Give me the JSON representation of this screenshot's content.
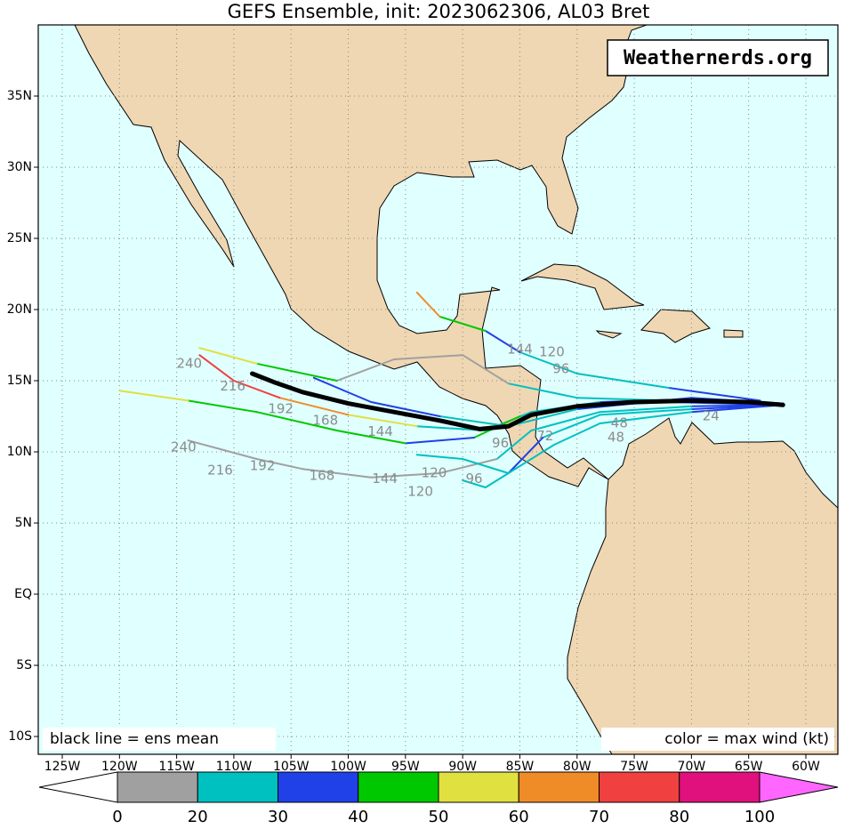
{
  "chart_data": {
    "type": "track-map",
    "title": "GEFS Ensemble, init: 2023062306, AL03 Bret",
    "watermark": "Weathernerds.org",
    "note_left": "black line = ens mean",
    "note_right": "color = max wind (kt)",
    "xlim": [
      -127.1,
      -57.2
    ],
    "ylim": [
      -11.25,
      40
    ],
    "xticks": [
      {
        "value": -125,
        "label": "125W"
      },
      {
        "value": -120,
        "label": "120W"
      },
      {
        "value": -115,
        "label": "115W"
      },
      {
        "value": -110,
        "label": "110W"
      },
      {
        "value": -105,
        "label": "105W"
      },
      {
        "value": -100,
        "label": "100W"
      },
      {
        "value": -95,
        "label": "95W"
      },
      {
        "value": -90,
        "label": "90W"
      },
      {
        "value": -85,
        "label": "85W"
      },
      {
        "value": -80,
        "label": "80W"
      },
      {
        "value": -75,
        "label": "75W"
      },
      {
        "value": -70,
        "label": "70W"
      },
      {
        "value": -65,
        "label": "65W"
      },
      {
        "value": -60,
        "label": "60W"
      }
    ],
    "yticks": [
      {
        "value": 35,
        "label": "35N"
      },
      {
        "value": 30,
        "label": "30N"
      },
      {
        "value": 25,
        "label": "25N"
      },
      {
        "value": 20,
        "label": "20N"
      },
      {
        "value": 15,
        "label": "15N"
      },
      {
        "value": 10,
        "label": "10N"
      },
      {
        "value": 5,
        "label": "5N"
      },
      {
        "value": 0,
        "label": "EQ"
      },
      {
        "value": -5,
        "label": "5S"
      },
      {
        "value": -10,
        "label": "10S"
      }
    ],
    "grid": true,
    "colorbar": {
      "ticks": [
        0,
        20,
        30,
        40,
        50,
        60,
        70,
        80,
        100
      ],
      "colors": [
        "#a0a0a0",
        "#00c0c0",
        "#2040e8",
        "#00c800",
        "#e0e040",
        "#f08c28",
        "#f04040",
        "#e0107c"
      ],
      "low_color": "#ffffff",
      "high_color": "#ff66ff"
    },
    "mean_track": {
      "color": "#000000",
      "lon": [
        -62,
        -65,
        -70,
        -75,
        -80,
        -84,
        -86,
        -88.5,
        -92,
        -96,
        -100,
        -104,
        -106.5,
        -108.4
      ],
      "lat": [
        13.3,
        13.5,
        13.6,
        13.5,
        13.2,
        12.6,
        11.8,
        11.6,
        12.2,
        12.8,
        13.4,
        14.2,
        14.9,
        15.5
      ]
    },
    "members": [
      {
        "lon": [
          -62,
          -70,
          -78,
          -84,
          -88,
          -94,
          -100,
          -106,
          -110,
          -113
        ],
        "lat": [
          13.4,
          13.7,
          13.5,
          12.8,
          11.5,
          11.8,
          12.6,
          13.8,
          15.0,
          16.8
        ],
        "colors": [
          "#2040e8",
          "#2040e8",
          "#00c0c0",
          "#00c0c0",
          "#00c0c0",
          "#e0e040",
          "#f08c28",
          "#f04040",
          "#f04040"
        ]
      },
      {
        "lon": [
          -62,
          -72,
          -80,
          -85,
          -89,
          -95,
          -101,
          -108,
          -114,
          -120
        ],
        "lat": [
          13.3,
          13.5,
          13.2,
          12.5,
          11.0,
          10.6,
          11.5,
          12.8,
          13.6,
          14.3
        ],
        "colors": [
          "#2040e8",
          "#00c0c0",
          "#00c0c0",
          "#00c800",
          "#2040e8",
          "#00c800",
          "#00c800",
          "#00c800",
          "#e0e040"
        ]
      },
      {
        "lon": [
          -62,
          -70,
          -78,
          -84,
          -87,
          -92,
          -98,
          -104,
          -108,
          -114
        ],
        "lat": [
          13.3,
          13.2,
          12.8,
          11.5,
          9.5,
          8.5,
          8.2,
          8.8,
          9.5,
          10.8
        ],
        "colors": [
          "#2040e8",
          "#00c0c0",
          "#00c0c0",
          "#00c0c0",
          "#a0a0a0",
          "#a0a0a0",
          "#a0a0a0",
          "#a0a0a0",
          "#a0a0a0"
        ]
      },
      {
        "lon": [
          -62,
          -72,
          -80,
          -86,
          -90,
          -96,
          -101,
          -108,
          -113
        ],
        "lat": [
          13.4,
          13.6,
          13.8,
          14.8,
          16.8,
          16.5,
          15.0,
          16.2,
          17.3
        ],
        "colors": [
          "#2040e8",
          "#00c0c0",
          "#00c0c0",
          "#a0a0a0",
          "#a0a0a0",
          "#a0a0a0",
          "#00c800",
          "#e0e040"
        ]
      },
      {
        "lon": [
          -62,
          -70,
          -78,
          -83,
          -86,
          -90,
          -94
        ],
        "lat": [
          13.3,
          13.0,
          12.6,
          11.0,
          8.5,
          9.5,
          9.8
        ],
        "colors": [
          "#2040e8",
          "#00c0c0",
          "#00c0c0",
          "#2040e8",
          "#00c0c0",
          "#00c0c0"
        ]
      },
      {
        "lon": [
          -64,
          -72,
          -80,
          -85,
          -88,
          -92,
          -94
        ],
        "lat": [
          13.6,
          14.5,
          15.5,
          17.0,
          18.5,
          19.5,
          21.2
        ],
        "colors": [
          "#2040e8",
          "#00c0c0",
          "#00c0c0",
          "#2040e8",
          "#00c800",
          "#f08c28"
        ]
      },
      {
        "lon": [
          -62,
          -70,
          -80,
          -86,
          -92,
          -98,
          -103
        ],
        "lat": [
          13.4,
          13.8,
          13.0,
          11.8,
          12.5,
          13.5,
          15.2
        ],
        "colors": [
          "#2040e8",
          "#2040e8",
          "#00c0c0",
          "#00c0c0",
          "#2040e8",
          "#2040e8"
        ]
      },
      {
        "lon": [
          -62,
          -70,
          -78,
          -82,
          -85,
          -88,
          -90
        ],
        "lat": [
          13.3,
          12.8,
          12.0,
          10.5,
          9.0,
          7.5,
          8.0
        ],
        "colors": [
          "#2040e8",
          "#00c0c0",
          "#00c0c0",
          "#00c0c0",
          "#00c0c0",
          "#00c0c0"
        ]
      }
    ],
    "hour_labels": [
      {
        "text": "240",
        "lon": -113.9,
        "lat": 16.2
      },
      {
        "text": "216",
        "lon": -110.1,
        "lat": 14.6
      },
      {
        "text": "192",
        "lon": -105.9,
        "lat": 13.0
      },
      {
        "text": "168",
        "lon": -102,
        "lat": 12.2
      },
      {
        "text": "144",
        "lon": -97.2,
        "lat": 11.4
      },
      {
        "text": "240",
        "lon": -114.4,
        "lat": 10.3
      },
      {
        "text": "216",
        "lon": -111.2,
        "lat": 8.7
      },
      {
        "text": "192",
        "lon": -107.5,
        "lat": 9.0
      },
      {
        "text": "168",
        "lon": -102.3,
        "lat": 8.3
      },
      {
        "text": "144",
        "lon": -96.8,
        "lat": 8.1
      },
      {
        "text": "120",
        "lon": -92.5,
        "lat": 8.5
      },
      {
        "text": "120",
        "lon": -93.7,
        "lat": 7.2
      },
      {
        "text": "96",
        "lon": -89,
        "lat": 8.1
      },
      {
        "text": "144",
        "lon": -85,
        "lat": 17.2
      },
      {
        "text": "120",
        "lon": -82.2,
        "lat": 17.0
      },
      {
        "text": "96",
        "lon": -81.4,
        "lat": 15.8
      },
      {
        "text": "96",
        "lon": -86.7,
        "lat": 10.6
      },
      {
        "text": "72",
        "lon": -82.8,
        "lat": 11.1
      },
      {
        "text": "48",
        "lon": -76.6,
        "lat": 11.0
      },
      {
        "text": "48",
        "lon": -76.3,
        "lat": 12.0
      },
      {
        "text": "24",
        "lon": -68.3,
        "lat": 12.5
      }
    ]
  }
}
